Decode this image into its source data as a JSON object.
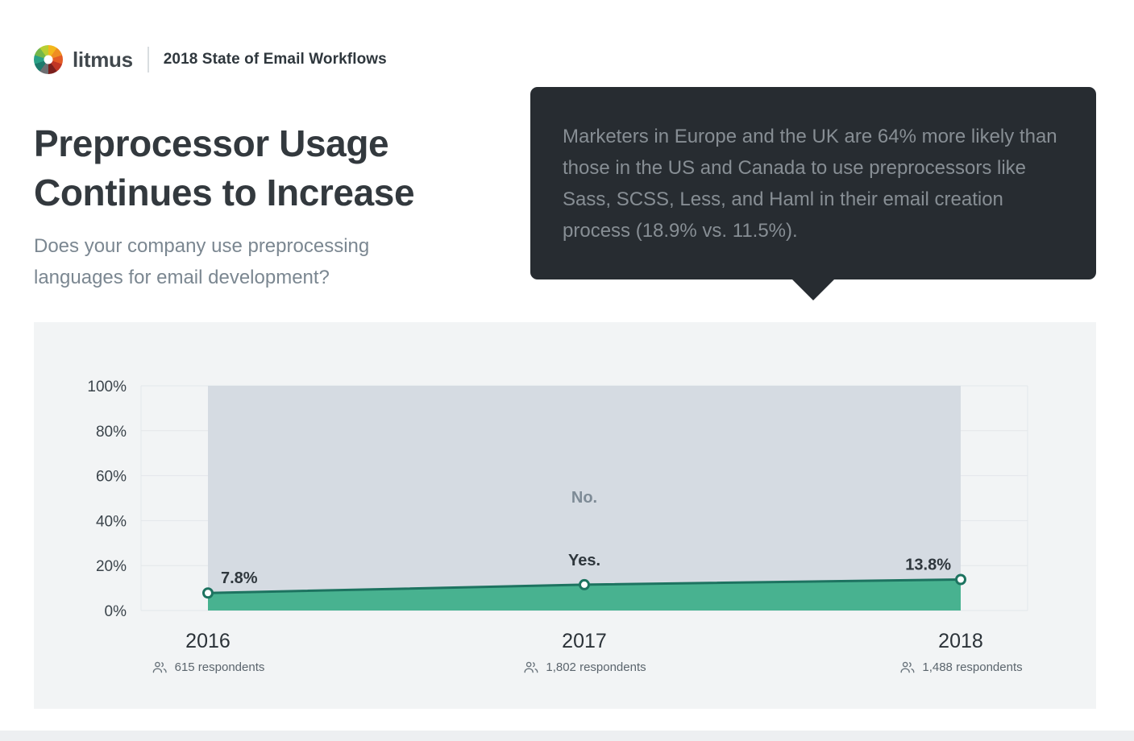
{
  "header": {
    "brand": "litmus",
    "report_title": "2018 State of Email Workflows",
    "logo_colors": [
      "#f3b71c",
      "#ef8d22",
      "#e35b25",
      "#c03625",
      "#7b1f1c",
      "#6d6e71",
      "#1d7a6c",
      "#2aa187",
      "#74b74a",
      "#b8cf32"
    ]
  },
  "headline": {
    "title_line1": "Preprocessor Usage",
    "title_line2": "Continues to Increase",
    "subtitle": "Does your company use preprocessing languages for email development?"
  },
  "callout": {
    "text": "Marketers in Europe and the UK are 64% more likely than those in the US and Canada to use preprocessors like Sass, SCSS, Less, and Haml in their email creation process (18.9% vs. 11.5%)."
  },
  "chart_data": {
    "type": "area",
    "title": "",
    "categories": [
      "2016",
      "2017",
      "2018"
    ],
    "series": [
      {
        "name": "Yes.",
        "values": [
          7.8,
          11.5,
          13.8
        ]
      },
      {
        "name": "No.",
        "values": [
          92.2,
          88.5,
          86.2
        ]
      }
    ],
    "ylim": [
      0,
      100
    ],
    "ytick_labels": [
      "0%",
      "20%",
      "40%",
      "60%",
      "80%",
      "100%"
    ],
    "point_labels": [
      "7.8%",
      "Yes.",
      "13.8%"
    ],
    "no_area_label": "No.",
    "respondents": [
      "615 respondents",
      "1,802 respondents",
      "1,488 respondents"
    ],
    "grid": true,
    "legend": "none",
    "colors": {
      "yes_fill": "#48b290",
      "line_stroke": "#1d7360",
      "no_fill": "#d5dbe2",
      "panel_bg": "#f2f4f5",
      "gridline": "#e3e7ea"
    }
  }
}
